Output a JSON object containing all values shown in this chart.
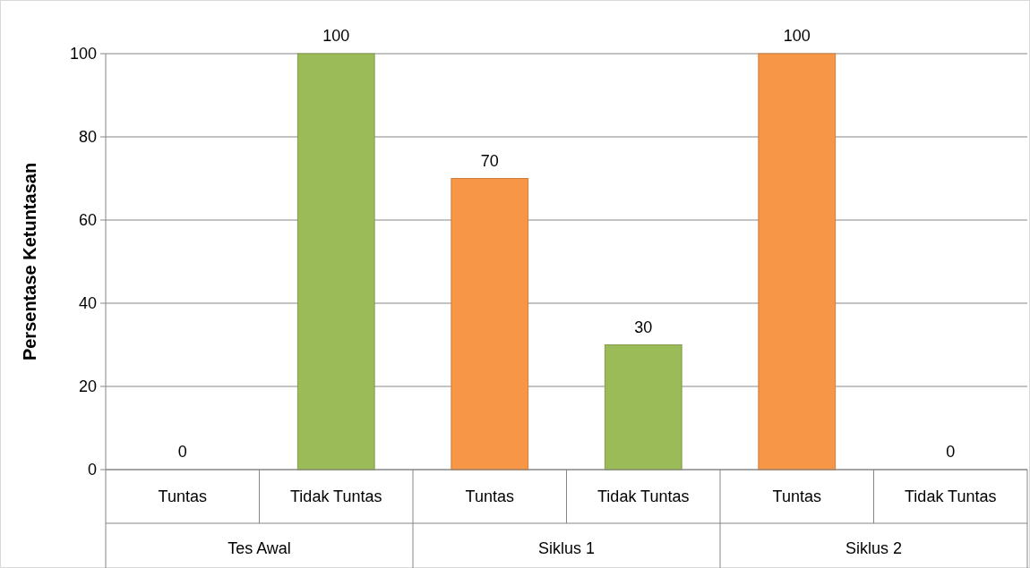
{
  "chart_data": {
    "type": "bar",
    "ylabel": "Persentase Ketuntasan",
    "categories": [
      "Tuntas",
      "Tidak Tuntas",
      "Tuntas",
      "Tidak Tuntas",
      "Tuntas",
      "Tidak Tuntas"
    ],
    "values": [
      0,
      100,
      70,
      30,
      100,
      0
    ],
    "colors": [
      "#f79646",
      "#9bbb59",
      "#f79646",
      "#9bbb59",
      "#f79646",
      "#9bbb59"
    ],
    "annotations": [
      "Tes Awal",
      "Siklus 1",
      "Siklus 2"
    ],
    "ylim": [
      0,
      100
    ],
    "yticks": [
      0,
      20,
      40,
      60,
      80,
      100
    ],
    "grid": "y",
    "data_labels": true
  }
}
